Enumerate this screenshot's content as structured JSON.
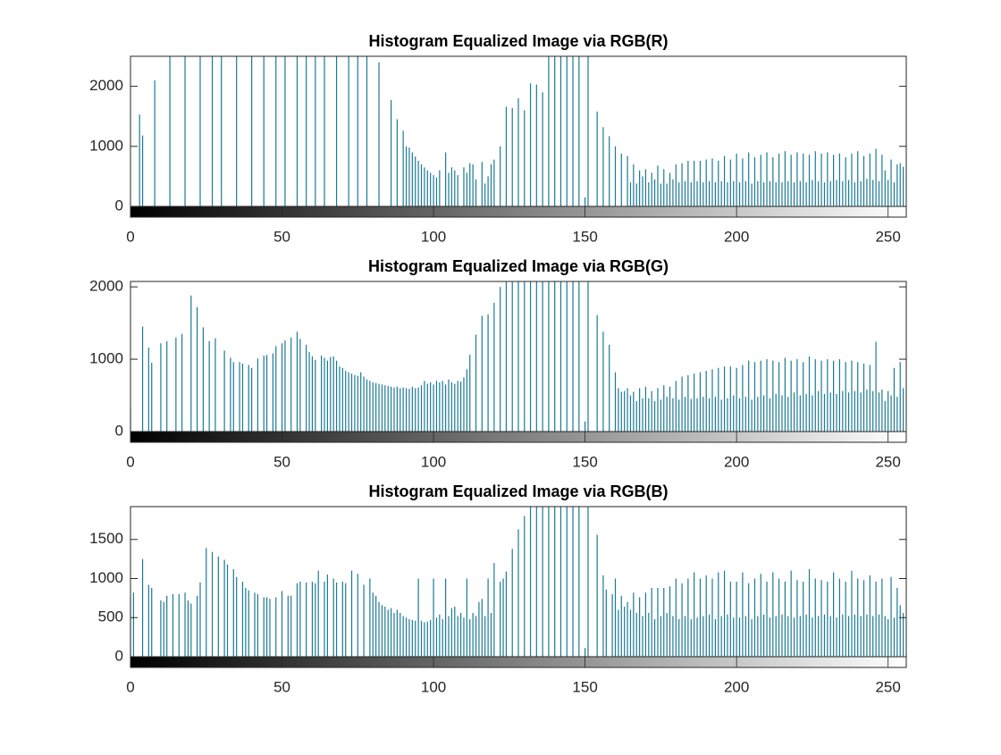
{
  "chart_data": [
    {
      "type": "stem",
      "title": "Histogram Equalized Image via RGB(R)",
      "color": "#1b7a94",
      "xlim": [
        0,
        256
      ],
      "xticks": [
        0,
        50,
        100,
        150,
        200,
        250
      ],
      "ylim": [
        0,
        2500
      ],
      "yticks": [
        0,
        1000,
        2000
      ],
      "values": [
        0,
        0,
        0,
        1530,
        1180,
        0,
        0,
        0,
        2100,
        0,
        0,
        0,
        0,
        3500,
        0,
        0,
        0,
        0,
        3800,
        0,
        0,
        0,
        0,
        4000,
        0,
        0,
        0,
        3600,
        0,
        0,
        3400,
        0,
        0,
        0,
        0,
        3300,
        0,
        0,
        0,
        0,
        3500,
        0,
        0,
        0,
        3400,
        0,
        0,
        0,
        3300,
        0,
        0,
        3200,
        0,
        0,
        0,
        3100,
        0,
        0,
        3000,
        0,
        0,
        3200,
        0,
        0,
        3100,
        0,
        0,
        0,
        2900,
        0,
        0,
        0,
        2800,
        0,
        0,
        2900,
        0,
        0,
        2700,
        0,
        0,
        0,
        2400,
        0,
        0,
        0,
        1770,
        0,
        1450,
        0,
        1260,
        1000,
        980,
        900,
        830,
        760,
        700,
        650,
        600,
        560,
        520,
        480,
        600,
        0,
        900,
        560,
        650,
        600,
        520,
        0,
        650,
        560,
        720,
        700,
        450,
        0,
        740,
        380,
        500,
        700,
        780,
        0,
        1000,
        0,
        1660,
        0,
        1640,
        0,
        1800,
        0,
        1600,
        0,
        2050,
        0,
        2030,
        0,
        1900,
        0,
        2500,
        0,
        2700,
        0,
        2900,
        0,
        3000,
        0,
        2900,
        0,
        2800,
        0,
        150,
        2600,
        0,
        0,
        1580,
        0,
        1320,
        0,
        1170,
        0,
        1000,
        0,
        880,
        0,
        840,
        400,
        700,
        380,
        600,
        500,
        620,
        400,
        560,
        450,
        680,
        380,
        620,
        380,
        560,
        450,
        700,
        400,
        720,
        420,
        760,
        400,
        760,
        420,
        760,
        400,
        780,
        420,
        800,
        400,
        760,
        420,
        840,
        400,
        780,
        420,
        880,
        400,
        800,
        420,
        900,
        380,
        820,
        420,
        860,
        400,
        900,
        420,
        820,
        400,
        880,
        400,
        920,
        420,
        860,
        400,
        900,
        420,
        880,
        400,
        860,
        440,
        920,
        420,
        880,
        400,
        900,
        420,
        860,
        440,
        880,
        420,
        820,
        440,
        880,
        400,
        920,
        420,
        840,
        460,
        880,
        440,
        960,
        420,
        860,
        600,
        440,
        780,
        400,
        700,
        720,
        660
      ]
    },
    {
      "type": "stem",
      "title": "Histogram Equalized Image via RGB(G)",
      "color": "#1b7a94",
      "xlim": [
        0,
        256
      ],
      "xticks": [
        0,
        50,
        100,
        150,
        200,
        250
      ],
      "ylim": [
        0,
        2075
      ],
      "yticks": [
        0,
        1000,
        2000
      ],
      "values": [
        320,
        0,
        0,
        0,
        1450,
        0,
        1160,
        950,
        0,
        0,
        1220,
        0,
        1250,
        0,
        0,
        1300,
        0,
        1350,
        0,
        0,
        1880,
        0,
        1720,
        0,
        1440,
        0,
        1250,
        0,
        1290,
        0,
        0,
        1120,
        0,
        1020,
        960,
        0,
        960,
        940,
        0,
        920,
        880,
        0,
        1010,
        0,
        1050,
        1060,
        0,
        1080,
        1180,
        0,
        1220,
        1260,
        0,
        1300,
        0,
        1380,
        1280,
        0,
        1200,
        1100,
        1040,
        990,
        0,
        1050,
        1020,
        980,
        1030,
        1040,
        980,
        900,
        880,
        840,
        820,
        800,
        780,
        770,
        820,
        760,
        720,
        700,
        680,
        670,
        660,
        650,
        640,
        630,
        620,
        610,
        620,
        600,
        610,
        600,
        590,
        620,
        600,
        610,
        640,
        700,
        660,
        680,
        650,
        700,
        680,
        700,
        650,
        720,
        680,
        660,
        700,
        690,
        750,
        860,
        1060,
        0,
        1340,
        0,
        1600,
        0,
        1620,
        0,
        1780,
        0,
        2000,
        0,
        2100,
        0,
        2300,
        0,
        2400,
        0,
        2500,
        0,
        2600,
        0,
        2600,
        0,
        2500,
        0,
        2400,
        0,
        2300,
        0,
        2200,
        0,
        2300,
        0,
        2200,
        0,
        2100,
        0,
        140,
        2200,
        0,
        0,
        1610,
        0,
        1380,
        0,
        1200,
        0,
        820,
        600,
        550,
        560,
        600,
        500,
        550,
        420,
        600,
        460,
        620,
        460,
        560,
        420,
        600,
        440,
        640,
        480,
        620,
        460,
        700,
        440,
        760,
        480,
        780,
        450,
        800,
        460,
        820,
        480,
        840,
        460,
        860,
        480,
        880,
        440,
        900,
        460,
        900,
        500,
        880,
        460,
        920,
        480,
        980,
        440,
        960,
        480,
        980,
        500,
        1000,
        460,
        980,
        520,
        960,
        500,
        1020,
        480,
        980,
        540,
        1000,
        500,
        960,
        520,
        1040,
        500,
        1000,
        560,
        980,
        520,
        1000,
        540,
        980,
        520,
        1000,
        560,
        960,
        540,
        980,
        560,
        960,
        540,
        940,
        580,
        920,
        560,
        1240,
        540,
        580,
        420,
        560,
        500,
        880,
        480,
        960,
        600
      ]
    },
    {
      "type": "stem",
      "title": "Histogram Equalized Image via RGB(B)",
      "color": "#1b7a94",
      "xlim": [
        0,
        256
      ],
      "xticks": [
        0,
        50,
        100,
        150,
        200,
        250
      ],
      "ylim": [
        0,
        1920
      ],
      "yticks": [
        0,
        500,
        1000,
        1500
      ],
      "values": [
        760,
        820,
        0,
        0,
        1250,
        0,
        920,
        880,
        0,
        0,
        720,
        700,
        780,
        0,
        800,
        0,
        800,
        0,
        820,
        720,
        680,
        0,
        780,
        950,
        0,
        1390,
        0,
        1340,
        0,
        1280,
        0,
        1240,
        1180,
        0,
        1120,
        1020,
        0,
        960,
        880,
        850,
        0,
        820,
        800,
        0,
        760,
        760,
        740,
        0,
        760,
        0,
        840,
        0,
        780,
        780,
        0,
        940,
        960,
        0,
        950,
        0,
        960,
        940,
        1100,
        0,
        960,
        1050,
        0,
        1000,
        950,
        0,
        960,
        940,
        0,
        1100,
        0,
        1060,
        0,
        920,
        0,
        1000,
        820,
        780,
        700,
        660,
        640,
        600,
        620,
        560,
        600,
        560,
        520,
        500,
        480,
        470,
        460,
        1000,
        460,
        440,
        450,
        470,
        1000,
        500,
        540,
        480,
        1000,
        520,
        620,
        640,
        520,
        560,
        500,
        1000,
        480,
        560,
        520,
        700,
        740,
        520,
        1000,
        560,
        1200,
        0,
        960,
        1000,
        1090,
        0,
        1380,
        0,
        1630,
        0,
        1800,
        0,
        2000,
        0,
        2100,
        0,
        2200,
        0,
        2100,
        0,
        2000,
        0,
        1950,
        0,
        2000,
        0,
        2050,
        0,
        2000,
        0,
        110,
        2100,
        0,
        0,
        1560,
        0,
        1040,
        860,
        0,
        800,
        1000,
        600,
        780,
        640,
        700,
        600,
        820,
        560,
        760,
        520,
        820,
        560,
        880,
        480,
        880,
        520,
        880,
        560,
        900,
        520,
        1000,
        480,
        940,
        520,
        1000,
        480,
        1080,
        500,
        1000,
        520,
        1040,
        540,
        1000,
        480,
        1080,
        520,
        1100,
        540,
        960,
        500,
        960,
        500,
        1080,
        520,
        940,
        480,
        1000,
        520,
        1060,
        540,
        960,
        500,
        1080,
        520,
        1000,
        540,
        960,
        520,
        1100,
        500,
        980,
        520,
        960,
        540,
        1120,
        500,
        1000,
        520,
        980,
        540,
        960,
        520,
        1080,
        500,
        1000,
        540,
        960,
        520,
        1100,
        540,
        1000,
        520,
        980,
        540,
        1040,
        520,
        960,
        540,
        1000,
        520,
        480,
        1020,
        500,
        880,
        660,
        560
      ]
    }
  ]
}
